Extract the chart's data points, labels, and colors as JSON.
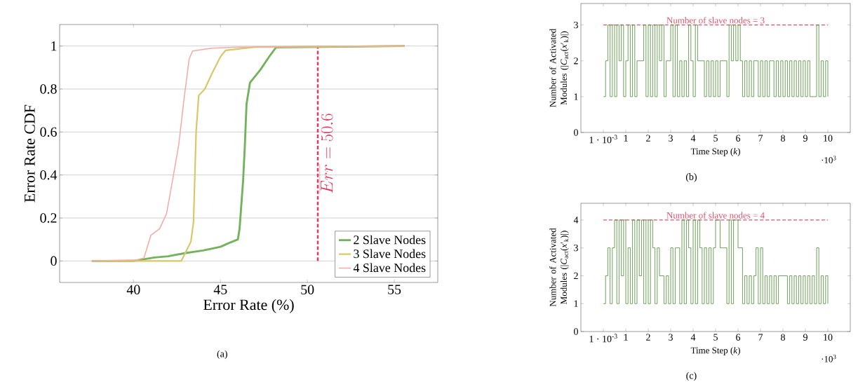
{
  "chart_data": [
    {
      "type": "line",
      "xlabel": "Error Rate (%)",
      "ylabel": "Error Rate CDF",
      "xlim": [
        35.75,
        57.5
      ],
      "ylim": [
        -0.1,
        1.1
      ],
      "xticks": [
        40,
        45,
        50,
        55
      ],
      "yticks": [
        0,
        0.2,
        0.4,
        0.6,
        0.8,
        1
      ],
      "grid": "y",
      "legend": "bottom right",
      "marker": "none",
      "ref_lines": [
        {
          "axis": "x",
          "value": 50.6,
          "label": "\\overline{Err} = 50.6",
          "color": "#e0385a",
          "line_style": "dashed"
        }
      ],
      "annotations": [
        "(a)"
      ],
      "series": [
        {
          "name": "2 Slave Nodes",
          "color": "#74b35d",
          "x": [
            37.6,
            40.0,
            41.2,
            42.0,
            43.0,
            44.0,
            45.0,
            45.5,
            46.0,
            46.1,
            46.3,
            46.4,
            46.5,
            46.7,
            47.3,
            47.8,
            48.2,
            55.6
          ],
          "values": [
            0,
            0,
            0.016,
            0.022,
            0.037,
            0.049,
            0.066,
            0.084,
            0.1,
            0.15,
            0.37,
            0.53,
            0.73,
            0.83,
            0.89,
            0.95,
            0.994,
            1
          ]
        },
        {
          "name": "3 Slave Nodes",
          "color": "#d8c86a",
          "x": [
            37.6,
            42.75,
            43.3,
            43.45,
            43.6,
            43.75,
            44.1,
            44.5,
            45.0,
            45.3,
            47.0,
            55.6
          ],
          "values": [
            0,
            0,
            0.09,
            0.18,
            0.6,
            0.77,
            0.8,
            0.87,
            0.95,
            0.98,
            0.995,
            1
          ]
        },
        {
          "name": "4 Slave Nodes",
          "color": "#f4aaa2",
          "x": [
            37.6,
            40.2,
            40.6,
            41.0,
            41.5,
            41.9,
            42.3,
            42.6,
            42.9,
            43.2,
            43.4,
            44.5,
            46.0,
            55.6
          ],
          "values": [
            0,
            0.005,
            0.014,
            0.12,
            0.15,
            0.22,
            0.4,
            0.54,
            0.75,
            0.94,
            0.977,
            0.99,
            0.995,
            1
          ]
        }
      ]
    },
    {
      "type": "step",
      "xlabel": "Time Step (*k*)",
      "ylabel": "Number of Activated Modules (|*C*$_{act}$(*x*′$_{k}$)|)",
      "xlim": [
        -1,
        11
      ],
      "ylim": [
        0,
        3.6
      ],
      "xticks": [
        {
          "value": 0.001,
          "label": "1 · 10$^{-3}$"
        },
        1,
        2,
        3,
        4,
        5,
        6,
        7,
        8,
        9,
        10
      ],
      "yticks": [
        0,
        1,
        2,
        3
      ],
      "marker": "none",
      "ref_lines": [
        {
          "axis": "y",
          "value": 3,
          "label": "Number of slave nodes = 3",
          "color": "#e8506a",
          "line_style": "dashed"
        }
      ],
      "annotations": [
        "·10$^{3}$",
        "(b)"
      ],
      "x": [
        0.001,
        0.1,
        0.2,
        0.3,
        0.4,
        0.5,
        0.6,
        0.7,
        0.8,
        0.9,
        1.0,
        1.1,
        1.2,
        1.3,
        1.4,
        1.5,
        1.6,
        1.7,
        1.8,
        1.9,
        2.0,
        2.1,
        2.2,
        2.3,
        2.4,
        2.5,
        2.6,
        2.7,
        2.8,
        2.9,
        3.0,
        3.1,
        3.2,
        3.3,
        3.4,
        3.5,
        3.6,
        3.7,
        3.8,
        3.9,
        4.0,
        4.1,
        4.2,
        4.3,
        4.4,
        4.5,
        4.6,
        4.7,
        4.8,
        4.9,
        5.0,
        5.1,
        5.2,
        5.3,
        5.4,
        5.5,
        5.6,
        5.7,
        5.8,
        5.9,
        6.0,
        6.1,
        6.2,
        6.3,
        6.4,
        6.5,
        6.6,
        6.7,
        6.8,
        6.9,
        7.0,
        7.1,
        7.2,
        7.3,
        7.4,
        7.5,
        7.6,
        7.7,
        7.8,
        7.9,
        8.0,
        8.1,
        8.2,
        8.3,
        8.4,
        8.5,
        8.6,
        8.7,
        8.8,
        8.9,
        9.0,
        9.1,
        9.2,
        9.3,
        9.4,
        9.5,
        9.6,
        9.7,
        9.8,
        9.9,
        10.0
      ],
      "series": [
        {
          "color": "#4a8a30",
          "values": [
            1,
            2,
            3,
            1,
            3,
            1,
            3,
            2,
            3,
            1,
            2,
            3,
            1,
            3,
            1,
            2,
            2,
            2,
            3,
            1,
            3,
            1,
            3,
            1,
            3,
            2,
            3,
            1,
            2,
            2,
            3,
            1,
            3,
            1,
            2,
            1,
            2,
            1,
            3,
            2,
            1,
            3,
            2,
            2,
            2,
            1,
            2,
            1,
            2,
            1,
            2,
            1,
            2,
            2,
            2,
            1,
            3,
            2,
            3,
            2,
            3,
            2,
            1,
            2,
            1,
            2,
            1,
            2,
            2,
            1,
            2,
            1,
            2,
            1,
            2,
            2,
            1,
            2,
            1,
            2,
            1,
            2,
            1,
            2,
            1,
            2,
            1,
            2,
            1,
            2,
            1,
            2,
            1,
            1,
            1,
            3,
            1,
            2,
            1,
            2,
            1
          ]
        }
      ]
    },
    {
      "type": "step",
      "xlabel": "Time Step (*k*)",
      "ylabel": "Number of Activated Modules (|*C*$_{act}$(*x*′$_{k}$)|)",
      "xlim": [
        -1,
        11
      ],
      "ylim": [
        0,
        4.6
      ],
      "xticks": [
        {
          "value": 0.001,
          "label": "1 · 10$^{-3}$"
        },
        1,
        2,
        3,
        4,
        5,
        6,
        7,
        8,
        9,
        10
      ],
      "yticks": [
        0,
        1,
        2,
        3,
        4
      ],
      "marker": "none",
      "ref_lines": [
        {
          "axis": "y",
          "value": 4,
          "label": "Number of slave nodes = 4",
          "color": "#e8506a",
          "line_style": "dashed"
        }
      ],
      "annotations": [
        "·10$^{3}$",
        "(c)"
      ],
      "x": [
        0.001,
        0.1,
        0.2,
        0.3,
        0.4,
        0.5,
        0.6,
        0.7,
        0.8,
        0.9,
        1.0,
        1.1,
        1.2,
        1.3,
        1.4,
        1.5,
        1.6,
        1.7,
        1.8,
        1.9,
        2.0,
        2.1,
        2.2,
        2.3,
        2.4,
        2.5,
        2.6,
        2.7,
        2.8,
        2.9,
        3.0,
        3.1,
        3.2,
        3.3,
        3.4,
        3.5,
        3.6,
        3.7,
        3.8,
        3.9,
        4.0,
        4.1,
        4.2,
        4.3,
        4.4,
        4.5,
        4.6,
        4.7,
        4.8,
        4.9,
        5.0,
        5.1,
        5.2,
        5.3,
        5.4,
        5.5,
        5.6,
        5.7,
        5.8,
        5.9,
        6.0,
        6.1,
        6.2,
        6.3,
        6.4,
        6.5,
        6.6,
        6.7,
        6.8,
        6.9,
        7.0,
        7.1,
        7.2,
        7.3,
        7.4,
        7.5,
        7.6,
        7.7,
        7.8,
        7.9,
        8.0,
        8.1,
        8.2,
        8.3,
        8.4,
        8.5,
        8.6,
        8.7,
        8.8,
        8.9,
        9.0,
        9.1,
        9.2,
        9.3,
        9.4,
        9.5,
        9.6,
        9.7,
        9.8,
        9.9,
        10.0
      ],
      "series": [
        {
          "color": "#4a8a30",
          "values": [
            1,
            2,
            3,
            1,
            3,
            4,
            1,
            4,
            2,
            4,
            1,
            3,
            1,
            4,
            1,
            4,
            2,
            4,
            1,
            4,
            1,
            4,
            3,
            1,
            3,
            2,
            2,
            1,
            2,
            1,
            3,
            1,
            3,
            3,
            1,
            4,
            1,
            4,
            3,
            1,
            4,
            1,
            4,
            3,
            1,
            3,
            1,
            3,
            1,
            3,
            4,
            4,
            3,
            3,
            3,
            1,
            4,
            1,
            4,
            4,
            3,
            3,
            1,
            2,
            1,
            2,
            1,
            2,
            3,
            1,
            3,
            1,
            2,
            1,
            2,
            1,
            2,
            1,
            2,
            2,
            2,
            2,
            1,
            2,
            1,
            2,
            1,
            2,
            1,
            2,
            1,
            2,
            1,
            2,
            1,
            3,
            1,
            2,
            1,
            2,
            1
          ]
        }
      ]
    }
  ]
}
